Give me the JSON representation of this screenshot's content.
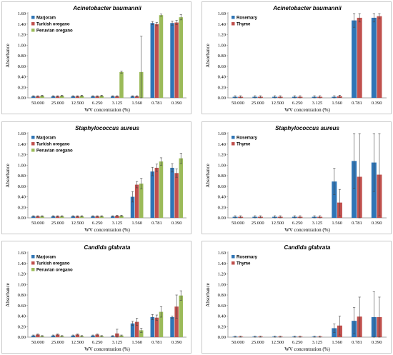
{
  "chart_data": [
    {
      "type": "bar",
      "title": "Acinetobacter baumannii",
      "xlabel": "WV concentration  (%)",
      "ylabel": "Absorbance",
      "ylim": [
        0,
        1.6
      ],
      "yticks": [
        "0.00",
        "0.20",
        "0.40",
        "0.60",
        "0.80",
        "1.00",
        "1.20",
        "1.40",
        "1.60"
      ],
      "categories": [
        "50.000",
        "25.000",
        "12.500",
        "6.250",
        "3.125",
        "1.560",
        "0.781",
        "0.390"
      ],
      "legend_position": "top-left",
      "series": [
        {
          "name": "Marjoram",
          "color": "#2e75b6",
          "values": [
            0.03,
            0.03,
            0.03,
            0.03,
            0.03,
            0.03,
            1.42,
            1.42
          ],
          "errors": [
            0.01,
            0.01,
            0.01,
            0.01,
            0.01,
            0.01,
            0.03,
            0.04
          ]
        },
        {
          "name": "Turkish oregano",
          "color": "#c0504d",
          "values": [
            0.03,
            0.03,
            0.03,
            0.03,
            0.03,
            0.03,
            1.4,
            1.43
          ],
          "errors": [
            0.01,
            0.01,
            0.01,
            0.01,
            0.01,
            0.01,
            0.03,
            0.04
          ]
        },
        {
          "name": "Peruvian oregano",
          "color": "#9bbb59",
          "values": [
            0.04,
            0.04,
            0.04,
            0.04,
            0.49,
            0.49,
            1.57,
            1.53
          ],
          "errors": [
            0.01,
            0.01,
            0.01,
            0.01,
            0.02,
            0.68,
            0.02,
            0.05
          ]
        }
      ]
    },
    {
      "type": "bar",
      "title": "Acinetobacter baumannii",
      "xlabel": "WV concentration  (%)",
      "ylabel": "Absorbance",
      "ylim": [
        0,
        1.6
      ],
      "yticks": [
        "0.00",
        "0.20",
        "0.40",
        "0.60",
        "0.80",
        "1.00",
        "1.20",
        "1.40",
        "1.60"
      ],
      "categories": [
        "50.000",
        "25.000",
        "12.500",
        "6.250",
        "3.125",
        "1.560",
        "0.781",
        "0.390"
      ],
      "legend_position": "top-left",
      "series": [
        {
          "name": "Rosemary",
          "color": "#2e75b6",
          "values": [
            0.02,
            0.02,
            0.02,
            0.02,
            0.02,
            0.02,
            1.47,
            1.52
          ],
          "errors": [
            0.02,
            0.02,
            0.02,
            0.02,
            0.02,
            0.02,
            0.13,
            0.08
          ]
        },
        {
          "name": "Thyme",
          "color": "#c0504d",
          "values": [
            0.02,
            0.02,
            0.02,
            0.02,
            0.02,
            0.03,
            1.52,
            1.55
          ],
          "errors": [
            0.02,
            0.02,
            0.02,
            0.02,
            0.02,
            0.02,
            0.08,
            0.05
          ]
        }
      ]
    },
    {
      "type": "bar",
      "title": "Staphylococcus aureus",
      "xlabel": "WV concentration  (%)",
      "ylabel": "Absorbance",
      "ylim": [
        0,
        1.6
      ],
      "yticks": [
        "0.00",
        "0.20",
        "0.40",
        "0.60",
        "0.80",
        "1.00",
        "1.20",
        "1.40",
        "1.60"
      ],
      "categories": [
        "50.000",
        "25.000",
        "12.500",
        "6.250",
        "3.125",
        "1.560",
        "0.781",
        "0.390"
      ],
      "legend_position": "top-left",
      "series": [
        {
          "name": "Marjoram",
          "color": "#2e75b6",
          "values": [
            0.03,
            0.03,
            0.03,
            0.03,
            0.03,
            0.4,
            0.88,
            0.95
          ],
          "errors": [
            0.01,
            0.01,
            0.01,
            0.01,
            0.01,
            0.1,
            0.08,
            0.08
          ]
        },
        {
          "name": "Turkish oregano",
          "color": "#c0504d",
          "values": [
            0.03,
            0.03,
            0.03,
            0.03,
            0.04,
            0.63,
            0.95,
            0.85
          ],
          "errors": [
            0.01,
            0.01,
            0.01,
            0.01,
            0.01,
            0.06,
            0.07,
            0.08
          ]
        },
        {
          "name": "Peruvian oregano",
          "color": "#9bbb59",
          "values": [
            0.03,
            0.03,
            0.03,
            0.03,
            0.04,
            0.65,
            1.07,
            1.13
          ],
          "errors": [
            0.01,
            0.01,
            0.01,
            0.01,
            0.01,
            0.1,
            0.07,
            0.1
          ]
        }
      ]
    },
    {
      "type": "bar",
      "title": "Staphylococcus aureus",
      "xlabel": "WV concentration  (%)",
      "ylabel": "Absorbance",
      "ylim": [
        0,
        1.6
      ],
      "yticks": [
        "0.00",
        "0.20",
        "0.40",
        "0.60",
        "0.80",
        "1.00",
        "1.20",
        "1.40",
        "1.60"
      ],
      "categories": [
        "50.000",
        "25.000",
        "12.500",
        "6.250",
        "3.125",
        "1.560",
        "0.781",
        "0.390"
      ],
      "legend_position": "top-left",
      "series": [
        {
          "name": "Rosemary",
          "color": "#2e75b6",
          "values": [
            0.02,
            0.02,
            0.02,
            0.02,
            0.02,
            0.69,
            1.08,
            1.05
          ],
          "errors": [
            0.02,
            0.02,
            0.02,
            0.02,
            0.02,
            0.25,
            0.52,
            0.55
          ]
        },
        {
          "name": "Thyme",
          "color": "#c0504d",
          "values": [
            0.02,
            0.02,
            0.02,
            0.02,
            0.02,
            0.29,
            0.78,
            0.82
          ],
          "errors": [
            0.02,
            0.02,
            0.02,
            0.02,
            0.02,
            0.25,
            0.82,
            0.78
          ]
        }
      ]
    },
    {
      "type": "bar",
      "title": "Candida glabrata",
      "xlabel": "WV concentration  (%)",
      "ylabel": "Absorbance",
      "ylim": [
        0,
        1.6
      ],
      "yticks": [
        "0.00",
        "0.20",
        "0.40",
        "0.60",
        "0.80",
        "1.00",
        "1.20",
        "1.40",
        "1.60"
      ],
      "categories": [
        "50.000",
        "25.000",
        "12.500",
        "6.250",
        "3.125",
        "1.560",
        "0.781",
        "0.390"
      ],
      "legend_position": "top-left",
      "series": [
        {
          "name": "Marjoram",
          "color": "#2e75b6",
          "values": [
            0.03,
            0.03,
            0.03,
            0.03,
            0.02,
            0.26,
            0.38,
            0.38
          ],
          "errors": [
            0.01,
            0.01,
            0.01,
            0.01,
            0.01,
            0.04,
            0.05,
            0.02
          ]
        },
        {
          "name": "Turkish oregano",
          "color": "#c0504d",
          "values": [
            0.05,
            0.05,
            0.05,
            0.05,
            0.07,
            0.29,
            0.37,
            0.58
          ],
          "errors": [
            0.01,
            0.01,
            0.01,
            0.01,
            0.08,
            0.07,
            0.05,
            0.22
          ]
        },
        {
          "name": "Peruvian oregano",
          "color": "#9bbb59",
          "values": [
            0.02,
            0.02,
            0.02,
            0.02,
            0.03,
            0.13,
            0.48,
            0.79
          ],
          "errors": [
            0.01,
            0.01,
            0.01,
            0.01,
            0.01,
            0.04,
            0.1,
            0.09
          ]
        }
      ]
    },
    {
      "type": "bar",
      "title": "Candida glabrata",
      "xlabel": "WV concentration  (%)",
      "ylabel": "Absorbance",
      "ylim": [
        0,
        1.6
      ],
      "yticks": [
        "0.00",
        "0.20",
        "0.40",
        "0.60",
        "0.80",
        "1.00",
        "1.20",
        "1.40",
        "1.60"
      ],
      "categories": [
        "50.000",
        "25.000",
        "12.500",
        "6.250",
        "3.125",
        "1.560",
        "0.781",
        "0.390"
      ],
      "legend_position": "top-left",
      "series": [
        {
          "name": "Rosemary",
          "color": "#2e75b6",
          "values": [
            0.01,
            0.01,
            0.01,
            0.01,
            0.01,
            0.17,
            0.31,
            0.38
          ],
          "errors": [
            0.01,
            0.01,
            0.01,
            0.01,
            0.01,
            0.08,
            0.25,
            0.48
          ]
        },
        {
          "name": "Thyme",
          "color": "#c0504d",
          "values": [
            0.01,
            0.01,
            0.01,
            0.01,
            0.01,
            0.22,
            0.39,
            0.38
          ],
          "errors": [
            0.01,
            0.01,
            0.01,
            0.01,
            0.01,
            0.18,
            0.37,
            0.38
          ]
        }
      ]
    }
  ]
}
